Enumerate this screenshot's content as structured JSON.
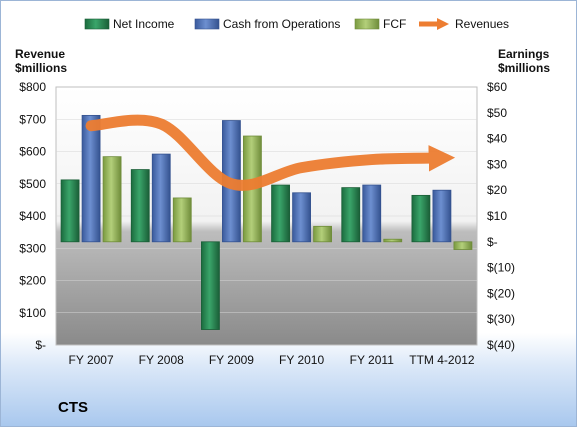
{
  "company": "CTS",
  "chart_data": {
    "type": "bar",
    "title": "",
    "categories": [
      "FY 2007",
      "FY 2008",
      "FY 2009",
      "FY 2010",
      "FY 2011",
      "TTM 4-2012"
    ],
    "left_axis": {
      "title_lines": [
        "Revenue",
        "$millions"
      ],
      "ylim": [
        0,
        800
      ],
      "ticks": [
        0,
        100,
        200,
        300,
        400,
        500,
        600,
        700,
        800
      ],
      "tick_labels": [
        "$-",
        "$100",
        "$200",
        "$300",
        "$400",
        "$500",
        "$600",
        "$700",
        "$800"
      ]
    },
    "right_axis": {
      "title_lines": [
        "Earnings",
        "$millions"
      ],
      "ylim": [
        -40,
        60
      ],
      "ticks": [
        -40,
        -30,
        -20,
        -10,
        0,
        10,
        20,
        30,
        40,
        50,
        60
      ],
      "tick_labels": [
        "$(40)",
        "$(30)",
        "$(20)",
        "$(10)",
        "$-",
        "$10",
        "$20",
        "$30",
        "$40",
        "$50",
        "$60"
      ]
    },
    "legend_position": "top",
    "series": [
      {
        "name": "Net Income",
        "kind": "bar",
        "axis": "right",
        "color": "#2e8b57",
        "values": [
          24,
          28,
          -34,
          22,
          21,
          18
        ]
      },
      {
        "name": "Cash from Operations",
        "kind": "bar",
        "axis": "right",
        "color": "#4f6fb5",
        "values": [
          49,
          34,
          47,
          19,
          22,
          20
        ]
      },
      {
        "name": "FCF",
        "kind": "bar",
        "axis": "right",
        "color": "#9bbb59",
        "values": [
          33,
          17,
          41,
          6,
          1,
          -3
        ]
      },
      {
        "name": "Revenues",
        "kind": "line",
        "axis": "left",
        "color": "#ed7d31",
        "values": [
          680,
          685,
          500,
          550,
          575,
          580
        ]
      }
    ]
  }
}
